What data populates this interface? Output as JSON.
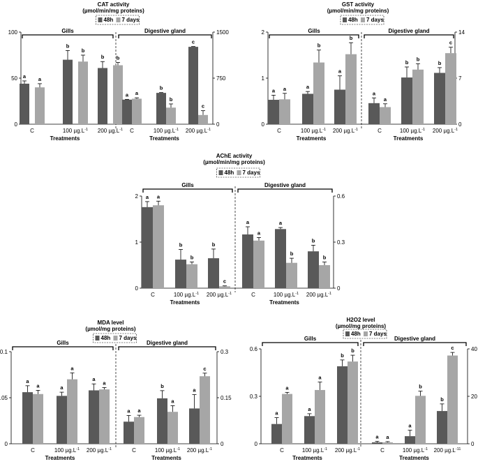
{
  "colors": {
    "series48h": "#595959",
    "series7d": "#a6a6a6",
    "axis": "#000000"
  },
  "chart_data": [
    {
      "type": "bar",
      "title": "CAT activity",
      "unit": "(µmol/min/mg proteins)",
      "legend": [
        "48h",
        "7 days"
      ],
      "xlabel": "Treatments",
      "groups": [
        "Gills",
        "Digestive gland"
      ],
      "categories": [
        "C",
        "100 µg.L",
        "200 µg.L"
      ],
      "unit_superscript": "-1",
      "left_axis": {
        "ylim": [
          0,
          100
        ],
        "ticks": [
          "0",
          "50",
          "100"
        ]
      },
      "right_axis": {
        "ylim": [
          0,
          1500
        ],
        "ticks": [
          "0",
          "750",
          "1500"
        ]
      },
      "series": [
        {
          "name": "48h",
          "gills": [
            44,
            70,
            61
          ],
          "gills_err": [
            3,
            10,
            7
          ],
          "dg": [
            400,
            510,
            1260
          ],
          "dg_err": [
            5,
            5,
            5
          ],
          "gills_letters": [
            "a",
            "b",
            "b"
          ],
          "dg_letters": [
            "a",
            "b",
            "c"
          ]
        },
        {
          "name": "7 days",
          "gills": [
            40,
            68,
            64
          ],
          "gills_err": [
            4,
            7,
            3
          ],
          "dg": [
            415,
            270,
            150
          ],
          "dg_err": [
            15,
            60,
            70
          ],
          "gills_letters": [
            "a",
            "b",
            "b"
          ],
          "dg_letters": [
            "a",
            "b",
            "c"
          ]
        }
      ]
    },
    {
      "type": "bar",
      "title": "GST activity",
      "unit": "(µmol/min/mg proteins)",
      "legend": [
        "48h",
        "7 days"
      ],
      "xlabel": "Treatments",
      "groups": [
        "Gills",
        "Digestive gland"
      ],
      "categories": [
        "C",
        "100 µg.L",
        "200 µg.L"
      ],
      "unit_superscript": "-1",
      "left_axis": {
        "ylim": [
          0,
          2
        ],
        "ticks": [
          "0",
          "1",
          "2"
        ]
      },
      "right_axis": {
        "ylim": [
          0,
          14
        ],
        "ticks": [
          "0",
          "7",
          "14"
        ]
      },
      "series": [
        {
          "name": "48h",
          "gills": [
            0.53,
            0.66,
            0.75
          ],
          "gills_err": [
            0.1,
            0.05,
            0.3
          ],
          "dg": [
            3.2,
            7.1,
            7.8
          ],
          "dg_err": [
            0.8,
            1.6,
            0.8
          ],
          "gills_letters": [
            "a",
            "a",
            "a"
          ],
          "dg_letters": [
            "a",
            "b",
            "b"
          ]
        },
        {
          "name": "7 days",
          "gills": [
            0.54,
            1.34,
            1.52
          ],
          "gills_err": [
            0.13,
            0.27,
            0.25
          ],
          "dg": [
            2.6,
            8.3,
            10.8
          ],
          "dg_err": [
            0.5,
            0.9,
            0.9
          ],
          "gills_letters": [
            "a",
            "b",
            "b"
          ],
          "dg_letters": [
            "a",
            "b",
            "c"
          ]
        }
      ]
    },
    {
      "type": "bar",
      "title": "AChE activity",
      "unit": "(µmol/min/mg proteins)",
      "legend": [
        "48h",
        "7 days"
      ],
      "xlabel": "Treatments",
      "groups": [
        "Gills",
        "Digestive gland"
      ],
      "categories": [
        "C",
        "100 µg.L",
        "200 µg.L"
      ],
      "unit_superscript": "-1",
      "left_axis": {
        "ylim": [
          0,
          2
        ],
        "ticks": [
          "0",
          "1",
          "2"
        ]
      },
      "right_axis": {
        "ylim": [
          0,
          0.6
        ],
        "ticks": [
          "0",
          "0.3",
          "0.6"
        ]
      },
      "series": [
        {
          "name": "48h",
          "gills": [
            1.76,
            0.62,
            0.65
          ],
          "gills_err": [
            0.12,
            0.22,
            0.2
          ],
          "dg": [
            0.35,
            0.385,
            0.24
          ],
          "dg_err": [
            0.05,
            0.01,
            0.04
          ],
          "gills_letters": [
            "a",
            "b",
            "b"
          ],
          "dg_letters": [
            "a",
            "a",
            "b"
          ]
        },
        {
          "name": "7 days",
          "gills": [
            1.8,
            0.52,
            0.04
          ],
          "gills_err": [
            0.09,
            0.05,
            0.01
          ],
          "dg": [
            0.31,
            0.165,
            0.15
          ],
          "dg_err": [
            0.02,
            0.03,
            0.02
          ],
          "gills_letters": [
            "a",
            "b",
            "c"
          ],
          "dg_letters": [
            "a",
            "b",
            "b"
          ]
        }
      ]
    },
    {
      "type": "bar",
      "title": "MDA level",
      "unit": "(µmol/mg proteins)",
      "legend": [
        "48h",
        "7 days"
      ],
      "xlabel": "Treatments",
      "groups": [
        "Gills",
        "Digestive gland"
      ],
      "categories": [
        "C",
        "100 µg.L",
        "200 µg.L"
      ],
      "unit_superscript": "-1",
      "left_axis": {
        "ylim": [
          0,
          0.1
        ],
        "ticks": [
          "0",
          "0.05",
          "0.1"
        ]
      },
      "right_axis": {
        "ylim": [
          0,
          0.3
        ],
        "ticks": [
          "0",
          "0.15",
          "0.3"
        ]
      },
      "series": [
        {
          "name": "48h",
          "gills": [
            0.056,
            0.052,
            0.058
          ],
          "gills_err": [
            0.007,
            0.004,
            0.007
          ],
          "dg": [
            0.072,
            0.148,
            0.115
          ],
          "dg_err": [
            0.02,
            0.025,
            0.045
          ],
          "gills_letters": [
            "a",
            "a",
            "a"
          ],
          "dg_letters": [
            "a",
            "b",
            "a"
          ]
        },
        {
          "name": "7 days",
          "gills": [
            0.054,
            0.07,
            0.059
          ],
          "gills_err": [
            0.004,
            0.007,
            0.002
          ],
          "dg": [
            0.087,
            0.104,
            0.22
          ],
          "dg_err": [
            0.006,
            0.02,
            0.01
          ],
          "gills_letters": [
            "a",
            "a",
            "a"
          ],
          "dg_letters": [
            "a",
            "a",
            "c"
          ]
        }
      ]
    },
    {
      "type": "bar",
      "title": "H2O2 level",
      "unit": "(µmol/mg proteins)",
      "legend": [
        "48h",
        "7 days"
      ],
      "xlabel": "Treatments",
      "groups": [
        "Gills",
        "Digestive gland"
      ],
      "categories": [
        "C",
        "100 µg.L",
        "200 µg.L"
      ],
      "unit_superscript": "-1",
      "last_superscript_suffix": "1",
      "left_axis": {
        "ylim": [
          0,
          0.6
        ],
        "ticks": [
          "0",
          "0.3",
          "0.6"
        ]
      },
      "right_axis": {
        "ylim": [
          0,
          40
        ],
        "ticks": [
          "0",
          "20",
          "40"
        ]
      },
      "series": [
        {
          "name": "48h",
          "gills": [
            0.125,
            0.175,
            0.49
          ],
          "gills_err": [
            0.04,
            0.015,
            0.04
          ],
          "dg": [
            0.6,
            3.2,
            13.8
          ],
          "dg_err": [
            0.4,
            2.5,
            3
          ],
          "gills_letters": [
            "a",
            "a",
            "b"
          ],
          "dg_letters": [
            "a",
            "a",
            "b"
          ]
        },
        {
          "name": "7 days",
          "gills": [
            0.315,
            0.34,
            0.52
          ],
          "gills_err": [
            0.01,
            0.05,
            0.04
          ],
          "dg": [
            0.6,
            20.2,
            37.2
          ],
          "dg_err": [
            0.3,
            2,
            1.3
          ],
          "gills_letters": [
            "a",
            "a",
            "b"
          ],
          "dg_letters": [
            "a",
            "b",
            "c"
          ]
        }
      ]
    }
  ]
}
